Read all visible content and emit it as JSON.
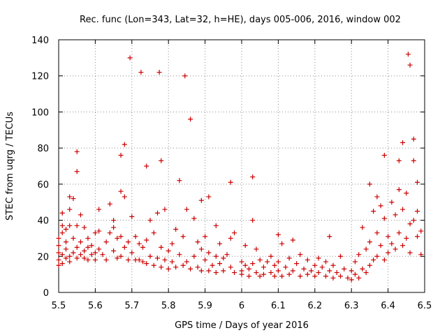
{
  "chart_data": {
    "type": "scatter",
    "title": "Rec. func (Lon=343, Lat=32, h=HE), days 005-006, 2016, window 002",
    "xlabel": "GPS time / Days of year 2016",
    "ylabel": "STEC from uqrg / TECUs",
    "xlim": [
      5.5,
      6.5
    ],
    "ylim": [
      0,
      140
    ],
    "xticks": [
      5.5,
      5.6,
      5.7,
      5.8,
      5.9,
      6.0,
      6.1,
      6.2,
      6.3,
      6.4,
      6.5
    ],
    "xtick_labels": [
      "5.5",
      "5.6",
      "5.7",
      "5.8",
      "5.9",
      "6",
      "6.1",
      "6.2",
      "6.3",
      "6.4",
      "6.5"
    ],
    "yticks": [
      0,
      20,
      40,
      60,
      80,
      100,
      120,
      140
    ],
    "ytick_labels": [
      "0",
      "20",
      "40",
      "60",
      "80",
      "100",
      "120",
      "140"
    ],
    "grid": true,
    "marker": "plus",
    "marker_color": "#cc0000",
    "series": [
      {
        "points": [
          [
            5.5,
            15
          ],
          [
            5.5,
            18
          ],
          [
            5.5,
            22
          ],
          [
            5.5,
            26
          ],
          [
            5.5,
            30
          ],
          [
            5.51,
            37
          ],
          [
            5.51,
            33
          ],
          [
            5.51,
            44
          ],
          [
            5.51,
            16
          ],
          [
            5.51,
            21
          ],
          [
            5.52,
            35
          ],
          [
            5.52,
            19
          ],
          [
            5.52,
            24
          ],
          [
            5.52,
            28
          ],
          [
            5.53,
            53
          ],
          [
            5.53,
            46
          ],
          [
            5.53,
            37
          ],
          [
            5.53,
            17
          ],
          [
            5.53,
            20
          ],
          [
            5.54,
            52
          ],
          [
            5.54,
            30
          ],
          [
            5.54,
            22
          ],
          [
            5.55,
            78
          ],
          [
            5.55,
            67
          ],
          [
            5.55,
            37
          ],
          [
            5.55,
            25
          ],
          [
            5.55,
            19
          ],
          [
            5.56,
            43
          ],
          [
            5.56,
            21
          ],
          [
            5.56,
            28
          ],
          [
            5.57,
            36
          ],
          [
            5.57,
            23
          ],
          [
            5.57,
            19
          ],
          [
            5.58,
            30
          ],
          [
            5.58,
            25
          ],
          [
            5.58,
            18
          ],
          [
            5.59,
            21
          ],
          [
            5.59,
            26
          ],
          [
            5.6,
            33
          ],
          [
            5.6,
            22
          ],
          [
            5.6,
            18
          ],
          [
            5.61,
            46
          ],
          [
            5.61,
            34
          ],
          [
            5.61,
            24
          ],
          [
            5.62,
            21
          ],
          [
            5.63,
            18
          ],
          [
            5.63,
            28
          ],
          [
            5.64,
            49
          ],
          [
            5.64,
            33
          ],
          [
            5.65,
            40
          ],
          [
            5.65,
            36
          ],
          [
            5.65,
            23
          ],
          [
            5.66,
            30
          ],
          [
            5.66,
            19
          ],
          [
            5.67,
            76
          ],
          [
            5.67,
            56
          ],
          [
            5.67,
            31
          ],
          [
            5.67,
            20
          ],
          [
            5.68,
            82
          ],
          [
            5.68,
            53
          ],
          [
            5.68,
            25
          ],
          [
            5.69,
            28
          ],
          [
            5.69,
            18
          ],
          [
            5.695,
            130
          ],
          [
            5.7,
            42
          ],
          [
            5.7,
            22
          ],
          [
            5.71,
            31
          ],
          [
            5.71,
            18
          ],
          [
            5.72,
            27
          ],
          [
            5.72,
            18
          ],
          [
            5.725,
            122
          ],
          [
            5.73,
            25
          ],
          [
            5.73,
            17
          ],
          [
            5.74,
            70
          ],
          [
            5.74,
            29
          ],
          [
            5.74,
            16
          ],
          [
            5.75,
            40
          ],
          [
            5.75,
            20
          ],
          [
            5.76,
            33
          ],
          [
            5.76,
            15
          ],
          [
            5.77,
            44
          ],
          [
            5.77,
            19
          ],
          [
            5.775,
            122
          ],
          [
            5.78,
            73
          ],
          [
            5.78,
            25
          ],
          [
            5.78,
            14
          ],
          [
            5.79,
            46
          ],
          [
            5.79,
            18
          ],
          [
            5.8,
            23
          ],
          [
            5.8,
            13
          ],
          [
            5.81,
            27
          ],
          [
            5.81,
            17
          ],
          [
            5.82,
            35
          ],
          [
            5.82,
            14
          ],
          [
            5.83,
            62
          ],
          [
            5.83,
            21
          ],
          [
            5.84,
            31
          ],
          [
            5.84,
            15
          ],
          [
            5.845,
            120
          ],
          [
            5.85,
            46
          ],
          [
            5.85,
            17
          ],
          [
            5.86,
            96
          ],
          [
            5.86,
            13
          ],
          [
            5.87,
            41
          ],
          [
            5.87,
            20
          ],
          [
            5.88,
            28
          ],
          [
            5.88,
            14
          ],
          [
            5.89,
            51
          ],
          [
            5.89,
            24
          ],
          [
            5.89,
            12
          ],
          [
            5.9,
            31
          ],
          [
            5.9,
            18
          ],
          [
            5.91,
            53
          ],
          [
            5.91,
            22
          ],
          [
            5.91,
            12
          ],
          [
            5.92,
            15
          ],
          [
            5.93,
            37
          ],
          [
            5.93,
            20
          ],
          [
            5.93,
            11
          ],
          [
            5.94,
            27
          ],
          [
            5.94,
            16
          ],
          [
            5.95,
            19
          ],
          [
            5.95,
            12
          ],
          [
            5.96,
            21
          ],
          [
            5.97,
            61
          ],
          [
            5.97,
            30
          ],
          [
            5.97,
            14
          ],
          [
            5.98,
            33
          ],
          [
            5.98,
            11
          ],
          [
            6.0,
            17
          ],
          [
            6.0,
            12
          ],
          [
            6.0,
            10
          ],
          [
            6.01,
            26
          ],
          [
            6.01,
            15
          ],
          [
            6.02,
            13
          ],
          [
            6.02,
            9
          ],
          [
            6.03,
            64
          ],
          [
            6.03,
            40
          ],
          [
            6.03,
            16
          ],
          [
            6.04,
            24
          ],
          [
            6.04,
            11
          ],
          [
            6.05,
            18
          ],
          [
            6.05,
            9
          ],
          [
            6.06,
            14
          ],
          [
            6.06,
            10
          ],
          [
            6.07,
            17
          ],
          [
            6.08,
            20
          ],
          [
            6.08,
            11
          ],
          [
            6.09,
            15
          ],
          [
            6.09,
            9
          ],
          [
            6.1,
            32
          ],
          [
            6.1,
            17
          ],
          [
            6.1,
            12
          ],
          [
            6.11,
            27
          ],
          [
            6.11,
            9
          ],
          [
            6.12,
            14
          ],
          [
            6.13,
            19
          ],
          [
            6.13,
            10
          ],
          [
            6.14,
            29
          ],
          [
            6.14,
            12
          ],
          [
            6.15,
            16
          ],
          [
            6.16,
            21
          ],
          [
            6.16,
            9
          ],
          [
            6.17,
            13
          ],
          [
            6.18,
            18
          ],
          [
            6.18,
            10
          ],
          [
            6.19,
            12
          ],
          [
            6.2,
            15
          ],
          [
            6.2,
            9
          ],
          [
            6.21,
            19
          ],
          [
            6.21,
            11
          ],
          [
            6.22,
            14
          ],
          [
            6.23,
            17
          ],
          [
            6.23,
            9
          ],
          [
            6.24,
            31
          ],
          [
            6.24,
            12
          ],
          [
            6.25,
            15
          ],
          [
            6.25,
            8
          ],
          [
            6.26,
            11
          ],
          [
            6.27,
            20
          ],
          [
            6.27,
            9
          ],
          [
            6.28,
            13
          ],
          [
            6.29,
            8
          ],
          [
            6.3,
            12
          ],
          [
            6.3,
            7
          ],
          [
            6.31,
            17
          ],
          [
            6.31,
            10
          ],
          [
            6.32,
            21
          ],
          [
            6.32,
            8
          ],
          [
            6.33,
            36
          ],
          [
            6.33,
            13
          ],
          [
            6.34,
            24
          ],
          [
            6.34,
            11
          ],
          [
            6.35,
            60
          ],
          [
            6.35,
            28
          ],
          [
            6.35,
            15
          ],
          [
            6.36,
            45
          ],
          [
            6.36,
            18
          ],
          [
            6.37,
            53
          ],
          [
            6.37,
            33
          ],
          [
            6.37,
            20
          ],
          [
            6.38,
            48
          ],
          [
            6.38,
            26
          ],
          [
            6.39,
            76
          ],
          [
            6.39,
            41
          ],
          [
            6.39,
            18
          ],
          [
            6.4,
            31
          ],
          [
            6.4,
            22
          ],
          [
            6.41,
            50
          ],
          [
            6.41,
            27
          ],
          [
            6.42,
            43
          ],
          [
            6.42,
            24
          ],
          [
            6.43,
            73
          ],
          [
            6.43,
            57
          ],
          [
            6.43,
            33
          ],
          [
            6.44,
            83
          ],
          [
            6.44,
            46
          ],
          [
            6.44,
            26
          ],
          [
            6.45,
            55
          ],
          [
            6.45,
            30
          ],
          [
            6.455,
            132
          ],
          [
            6.46,
            126
          ],
          [
            6.46,
            38
          ],
          [
            6.46,
            22
          ],
          [
            6.47,
            85
          ],
          [
            6.47,
            73
          ],
          [
            6.47,
            40
          ],
          [
            6.48,
            61
          ],
          [
            6.48,
            45
          ],
          [
            6.48,
            31
          ],
          [
            6.49,
            34
          ],
          [
            6.49,
            21
          ]
        ]
      }
    ]
  }
}
